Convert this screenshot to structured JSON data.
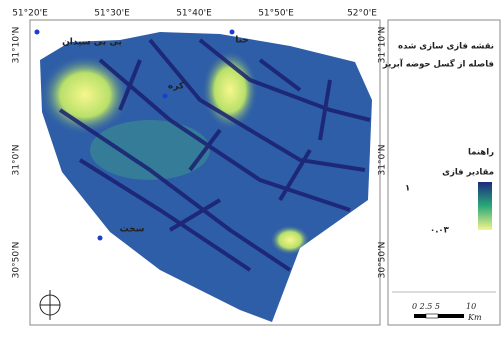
{
  "map": {
    "lon_labels": [
      "51°20'E",
      "51°30'E",
      "51°40'E",
      "51°50'E",
      "52°0'E"
    ],
    "lat_labels": [
      "31°10'N",
      "31°0'N",
      "30°50'N"
    ],
    "places": [
      {
        "label": "بی بی سیدان"
      },
      {
        "label": "حنا"
      },
      {
        "label": "کره"
      },
      {
        "label": "سخت"
      }
    ],
    "legend": {
      "title_1": "نقشه فازی سازی شده",
      "title_2": "فاصله از گسل حوضه آبریز",
      "heading": "راهنما",
      "subheading": "مقادیر فازی",
      "high": "۱",
      "low": "۰.۰۳"
    },
    "scale": {
      "ticks": "0 2.5 5",
      "end": "10",
      "unit": "Km"
    }
  }
}
